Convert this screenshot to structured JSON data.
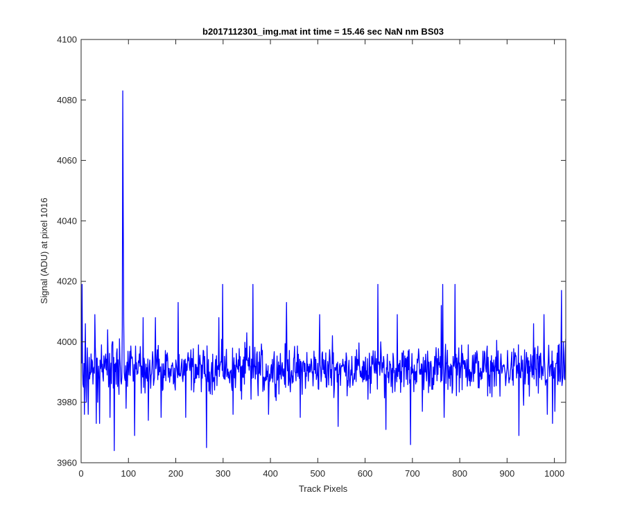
{
  "chart_data": {
    "type": "line",
    "title": "b2017112301_img.mat int time = 15.46 sec  NaN nm BS03",
    "xlabel": "Track Pixels",
    "ylabel": "Signal (ADU) at pixel 1016",
    "xlim": [
      0,
      1024
    ],
    "ylim": [
      3960,
      4100
    ],
    "xticks": [
      0,
      100,
      200,
      300,
      400,
      500,
      600,
      700,
      800,
      900,
      1000
    ],
    "yticks": [
      3960,
      3980,
      4000,
      4020,
      4040,
      4060,
      4080,
      4100
    ],
    "grid": false,
    "line_color": "#0000ff",
    "box": true,
    "series": [
      {
        "noise_mean": 3991,
        "noise_range": [
          3964,
          4020
        ],
        "points": [
          [
            1,
            4019
          ],
          [
            4,
            3985
          ],
          [
            6,
            3976
          ],
          [
            8,
            4006
          ],
          [
            10,
            3980
          ],
          [
            12,
            3998
          ],
          [
            14,
            3976
          ],
          [
            20,
            3996
          ],
          [
            24,
            3986
          ],
          [
            28,
            4009
          ],
          [
            31,
            3973
          ],
          [
            34,
            3980
          ],
          [
            38,
            3973
          ],
          [
            42,
            3999
          ],
          [
            46,
            3987
          ],
          [
            55,
            4004
          ],
          [
            60,
            3975
          ],
          [
            66,
            4000
          ],
          [
            69,
            3964
          ],
          [
            72,
            3993
          ],
          [
            80,
            4001
          ],
          [
            84,
            3986
          ],
          [
            86,
            4005
          ],
          [
            87,
            4083
          ],
          [
            88,
            4042
          ],
          [
            89,
            4007
          ],
          [
            91,
            3988
          ],
          [
            94,
            3978
          ],
          [
            105,
            3995
          ],
          [
            112,
            3969
          ],
          [
            130,
            4008
          ],
          [
            141,
            3974
          ],
          [
            156,
            4008
          ],
          [
            168,
            3975
          ],
          [
            199,
            3994
          ],
          [
            204,
            4013
          ],
          [
            220,
            3975
          ],
          [
            243,
            3988
          ],
          [
            256,
            3993
          ],
          [
            264,
            3965
          ],
          [
            270,
            3990
          ],
          [
            290,
            4008
          ],
          [
            298,
            4019
          ],
          [
            310,
            3988
          ],
          [
            320,
            3976
          ],
          [
            338,
            3981
          ],
          [
            349,
            4003
          ],
          [
            358,
            3981
          ],
          [
            362,
            4019
          ],
          [
            372,
            3987
          ],
          [
            386,
            3984
          ],
          [
            395,
            3976
          ],
          [
            410,
            3986
          ],
          [
            425,
            3989
          ],
          [
            433,
            4013
          ],
          [
            451,
            3990
          ],
          [
            462,
            3975
          ],
          [
            479,
            3987
          ],
          [
            503,
            4009
          ],
          [
            518,
            3985
          ],
          [
            530,
            4002
          ],
          [
            542,
            3972
          ],
          [
            570,
            3989
          ],
          [
            605,
            3981
          ],
          [
            610,
            3983
          ],
          [
            626,
            4019
          ],
          [
            643,
            3971
          ],
          [
            667,
            4009
          ],
          [
            690,
            3997
          ],
          [
            695,
            3966
          ],
          [
            720,
            3977
          ],
          [
            760,
            4012
          ],
          [
            763,
            4019
          ],
          [
            766,
            3975
          ],
          [
            783,
            3983
          ],
          [
            789,
            4019
          ],
          [
            797,
            3998
          ],
          [
            817,
            3999
          ],
          [
            825,
            3990
          ],
          [
            862,
            3989
          ],
          [
            884,
            3982
          ],
          [
            914,
            3992
          ],
          [
            923,
            3999
          ],
          [
            924,
            3969
          ],
          [
            934,
            3979
          ],
          [
            937,
            3986
          ],
          [
            946,
            3982
          ],
          [
            955,
            4006
          ],
          [
            965,
            3983
          ],
          [
            977,
            4009
          ],
          [
            984,
            3976
          ],
          [
            995,
            3973
          ],
          [
            1000,
            3977
          ],
          [
            1008,
            3987
          ],
          [
            1012,
            3988
          ],
          [
            1014,
            4017
          ],
          [
            1016,
            3987
          ],
          [
            1018,
            4000
          ],
          [
            1020,
            3988
          ],
          [
            1023,
            4001
          ]
        ]
      }
    ]
  }
}
